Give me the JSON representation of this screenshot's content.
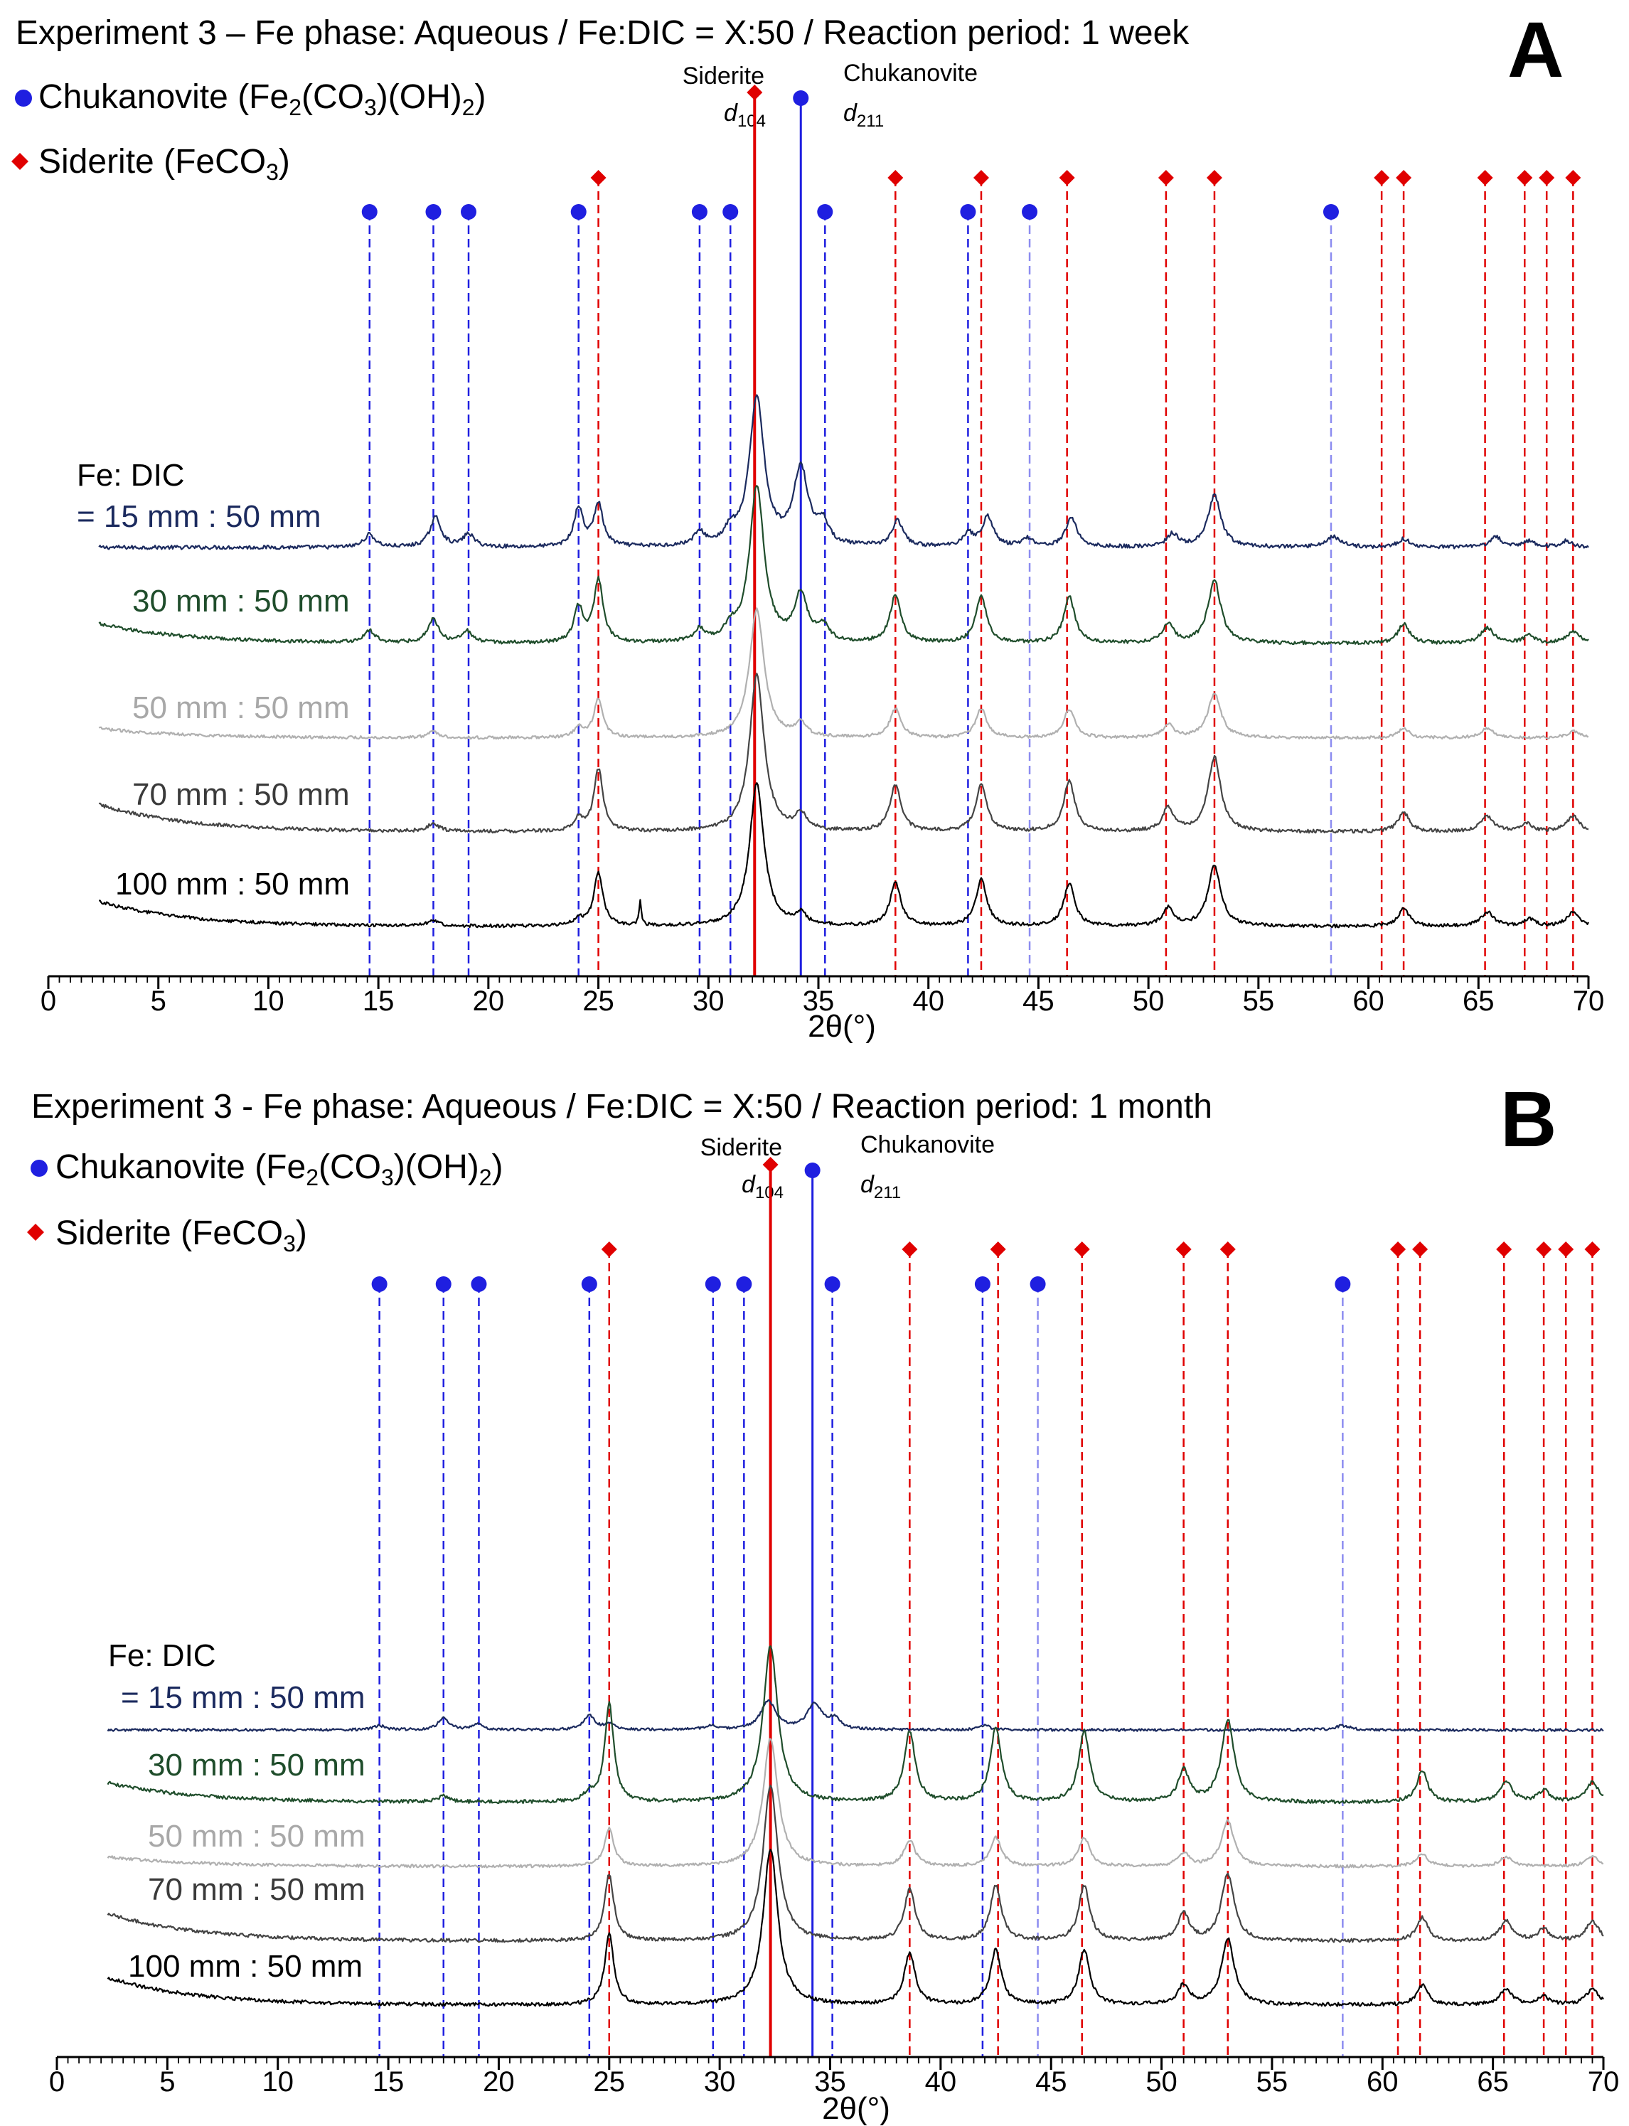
{
  "colors": {
    "chukanovite": "#1f1fe0",
    "siderite": "#e00000",
    "axis": "#000000",
    "series": [
      "#1b2a5e",
      "#1f4d2b",
      "#b0b0b0",
      "#444444",
      "#000000"
    ]
  },
  "chart_data": [
    {
      "panel": "A",
      "type": "line",
      "title": "Experiment 3 – Fe phase: Aqueous / Fe:DIC = X:50 / Reaction period: 1 week",
      "xlabel": "2θ(°)",
      "ylabel": "",
      "xlim": [
        0,
        70
      ],
      "xticks": [
        "0",
        "5",
        "10",
        "15",
        "20",
        "25",
        "30",
        "35",
        "40",
        "45",
        "50",
        "55",
        "60",
        "65",
        "70"
      ],
      "legend": {
        "chukanovite": {
          "name": "Chukanovite",
          "formula": [
            "(Fe",
            "2",
            "(CO",
            "3",
            ")(OH)",
            "2",
            ")"
          ]
        },
        "siderite": {
          "name": "Siderite",
          "formula": [
            "(FeCO",
            "3",
            ")"
          ]
        }
      },
      "annotations": {
        "siderite": {
          "name": "Siderite",
          "d": "d",
          "hkl": "104",
          "x": 32.1
        },
        "chukanovite": {
          "name": "Chukanovite",
          "d": "d",
          "hkl": "211",
          "x": 34.2
        }
      },
      "series_header": "Fe: DIC",
      "series": [
        {
          "name": "= 15 mm : 50 mm",
          "peaks": [
            [
              14.6,
              0.3,
              0.3
            ],
            [
              17.6,
              0.7,
              0.3
            ],
            [
              19.1,
              0.3,
              0.3
            ],
            [
              24.1,
              0.9,
              0.25
            ],
            [
              25.0,
              1.0,
              0.25
            ],
            [
              29.6,
              0.3,
              0.3
            ],
            [
              31.0,
              0.3,
              0.3
            ],
            [
              32.2,
              3.5,
              0.4
            ],
            [
              34.2,
              1.8,
              0.4
            ],
            [
              35.2,
              0.5,
              0.3
            ],
            [
              38.6,
              0.6,
              0.3
            ],
            [
              41.8,
              0.3,
              0.3
            ],
            [
              42.7,
              0.7,
              0.3
            ],
            [
              44.5,
              0.2,
              0.3
            ],
            [
              46.5,
              0.7,
              0.3
            ],
            [
              51.1,
              0.3,
              0.3
            ],
            [
              53.0,
              1.2,
              0.35
            ],
            [
              58.4,
              0.25,
              0.4
            ],
            [
              61.6,
              0.2,
              0.3
            ],
            [
              65.8,
              0.25,
              0.3
            ],
            [
              67.3,
              0.15,
              0.3
            ],
            [
              69.0,
              0.15,
              0.3
            ]
          ]
        },
        {
          "name": "30 mm : 50 mm",
          "peaks": [
            [
              14.6,
              0.3,
              0.3
            ],
            [
              17.5,
              0.6,
              0.3
            ],
            [
              19.0,
              0.3,
              0.3
            ],
            [
              24.1,
              0.9,
              0.25
            ],
            [
              25.0,
              1.6,
              0.25
            ],
            [
              29.6,
              0.3,
              0.3
            ],
            [
              31.0,
              0.3,
              0.3
            ],
            [
              32.2,
              4.0,
              0.4
            ],
            [
              34.2,
              1.2,
              0.35
            ],
            [
              35.2,
              0.4,
              0.3
            ],
            [
              38.5,
              1.2,
              0.3
            ],
            [
              42.4,
              1.2,
              0.3
            ],
            [
              46.4,
              1.2,
              0.3
            ],
            [
              50.9,
              0.5,
              0.3
            ],
            [
              53.0,
              1.6,
              0.35
            ],
            [
              61.6,
              0.5,
              0.3
            ],
            [
              65.4,
              0.4,
              0.35
            ],
            [
              67.3,
              0.2,
              0.3
            ],
            [
              69.3,
              0.3,
              0.35
            ]
          ]
        },
        {
          "name": "50 mm : 50 mm",
          "peaks": [
            [
              17.5,
              0.2,
              0.3
            ],
            [
              24.1,
              0.3,
              0.25
            ],
            [
              25.0,
              1.2,
              0.25
            ],
            [
              32.2,
              4.0,
              0.4
            ],
            [
              34.2,
              0.4,
              0.3
            ],
            [
              38.5,
              0.9,
              0.3
            ],
            [
              42.4,
              0.9,
              0.3
            ],
            [
              46.4,
              0.9,
              0.3
            ],
            [
              50.9,
              0.4,
              0.3
            ],
            [
              53.0,
              1.4,
              0.35
            ],
            [
              61.6,
              0.3,
              0.3
            ],
            [
              65.4,
              0.3,
              0.35
            ],
            [
              69.3,
              0.2,
              0.35
            ]
          ]
        },
        {
          "name": "70 mm : 50 mm",
          "peaks": [
            [
              17.5,
              0.2,
              0.3
            ],
            [
              24.1,
              0.3,
              0.25
            ],
            [
              25.0,
              1.6,
              0.25
            ],
            [
              32.2,
              4.0,
              0.4
            ],
            [
              34.2,
              0.4,
              0.3
            ],
            [
              38.5,
              1.2,
              0.3
            ],
            [
              42.4,
              1.2,
              0.3
            ],
            [
              46.4,
              1.3,
              0.3
            ],
            [
              50.9,
              0.6,
              0.3
            ],
            [
              53.0,
              1.9,
              0.35
            ],
            [
              61.6,
              0.5,
              0.3
            ],
            [
              65.4,
              0.4,
              0.35
            ],
            [
              67.2,
              0.2,
              0.3
            ],
            [
              69.3,
              0.4,
              0.35
            ]
          ]
        },
        {
          "name": "100 mm : 50 mm",
          "peaks": [
            [
              17.5,
              0.15,
              0.3
            ],
            [
              24.1,
              0.2,
              0.25
            ],
            [
              25.0,
              1.5,
              0.25
            ],
            [
              26.9,
              0.7,
              0.06
            ],
            [
              32.2,
              4.0,
              0.4
            ],
            [
              34.2,
              0.3,
              0.3
            ],
            [
              38.5,
              1.2,
              0.3
            ],
            [
              42.4,
              1.3,
              0.3
            ],
            [
              46.4,
              1.2,
              0.3
            ],
            [
              50.9,
              0.5,
              0.3
            ],
            [
              53.0,
              1.7,
              0.35
            ],
            [
              61.6,
              0.5,
              0.3
            ],
            [
              65.4,
              0.4,
              0.35
            ],
            [
              67.3,
              0.2,
              0.3
            ],
            [
              69.3,
              0.4,
              0.35
            ]
          ]
        }
      ],
      "chukanovite_lines": [
        14.6,
        17.5,
        19.1,
        24.1,
        29.6,
        31.0,
        35.3,
        41.8,
        44.6,
        58.3
      ],
      "siderite_lines": [
        25.0,
        38.5,
        42.4,
        46.3,
        50.8,
        53.0,
        60.6,
        61.6,
        65.3,
        67.1,
        68.1,
        69.3
      ]
    },
    {
      "panel": "B",
      "type": "line",
      "title": "Experiment 3 - Fe phase: Aqueous / Fe:DIC = X:50 / Reaction period: 1 month",
      "xlabel": "2θ(°)",
      "ylabel": "",
      "xlim": [
        0,
        70
      ],
      "xticks": [
        "0",
        "5",
        "10",
        "15",
        "20",
        "25",
        "30",
        "35",
        "40",
        "45",
        "50",
        "55",
        "60",
        "65",
        "70"
      ],
      "legend": {
        "chukanovite": {
          "name": "Chukanovite",
          "formula": [
            "(Fe",
            "2",
            "(CO",
            "3",
            ")(OH)",
            "2",
            ")"
          ]
        },
        "siderite": {
          "name": "Siderite",
          "formula": [
            "(FeCO",
            "3",
            ")"
          ]
        }
      },
      "annotations": {
        "siderite": {
          "name": "Siderite",
          "d": "d",
          "hkl": "104",
          "x": 32.3
        },
        "chukanovite": {
          "name": "Chukanovite",
          "d": "d",
          "hkl": "211",
          "x": 34.2
        }
      },
      "series_header": "Fe: DIC",
      "series": [
        {
          "name": "= 15 mm : 50 mm",
          "peaks": [
            [
              14.6,
              0.15,
              0.3
            ],
            [
              17.5,
              0.4,
              0.3
            ],
            [
              19.0,
              0.2,
              0.3
            ],
            [
              24.1,
              0.5,
              0.3
            ],
            [
              25.0,
              0.2,
              0.25
            ],
            [
              29.6,
              0.15,
              0.3
            ],
            [
              32.2,
              1.0,
              0.4
            ],
            [
              34.3,
              0.9,
              0.4
            ],
            [
              35.2,
              0.35,
              0.3
            ],
            [
              42.0,
              0.15,
              0.3
            ],
            [
              58.2,
              0.15,
              0.4
            ]
          ]
        },
        {
          "name": "30 mm : 50 mm",
          "peaks": [
            [
              17.5,
              0.15,
              0.3
            ],
            [
              24.1,
              0.2,
              0.25
            ],
            [
              25.0,
              2.5,
              0.25
            ],
            [
              32.3,
              4.0,
              0.4
            ],
            [
              38.6,
              1.8,
              0.3
            ],
            [
              42.5,
              1.9,
              0.3
            ],
            [
              46.5,
              1.8,
              0.3
            ],
            [
              51.0,
              0.8,
              0.3
            ],
            [
              53.0,
              2.1,
              0.35
            ],
            [
              61.8,
              0.8,
              0.3
            ],
            [
              65.6,
              0.5,
              0.35
            ],
            [
              67.3,
              0.3,
              0.3
            ],
            [
              69.5,
              0.5,
              0.35
            ]
          ]
        },
        {
          "name": "50 mm : 50 mm",
          "peaks": [
            [
              25.0,
              1.2,
              0.25
            ],
            [
              32.3,
              4.0,
              0.4
            ],
            [
              38.6,
              0.8,
              0.3
            ],
            [
              42.5,
              0.9,
              0.3
            ],
            [
              46.5,
              0.9,
              0.3
            ],
            [
              51.0,
              0.4,
              0.3
            ],
            [
              53.0,
              1.4,
              0.35
            ],
            [
              61.8,
              0.4,
              0.3
            ],
            [
              65.6,
              0.3,
              0.35
            ],
            [
              69.5,
              0.3,
              0.35
            ]
          ]
        },
        {
          "name": "70 mm : 50 mm",
          "peaks": [
            [
              25.0,
              1.7,
              0.25
            ],
            [
              32.3,
              4.0,
              0.4
            ],
            [
              38.6,
              1.3,
              0.3
            ],
            [
              42.5,
              1.4,
              0.3
            ],
            [
              46.5,
              1.4,
              0.3
            ],
            [
              51.0,
              0.7,
              0.3
            ],
            [
              53.0,
              1.7,
              0.35
            ],
            [
              61.8,
              0.6,
              0.3
            ],
            [
              65.6,
              0.5,
              0.35
            ],
            [
              67.3,
              0.3,
              0.3
            ],
            [
              69.5,
              0.5,
              0.35
            ]
          ]
        },
        {
          "name": "100 mm : 50 mm",
          "peaks": [
            [
              25.0,
              1.8,
              0.25
            ],
            [
              32.3,
              4.0,
              0.4
            ],
            [
              38.6,
              1.3,
              0.3
            ],
            [
              42.5,
              1.4,
              0.3
            ],
            [
              46.5,
              1.4,
              0.3
            ],
            [
              51.0,
              0.5,
              0.3
            ],
            [
              53.0,
              1.7,
              0.35
            ],
            [
              61.8,
              0.5,
              0.3
            ],
            [
              65.6,
              0.4,
              0.35
            ],
            [
              67.3,
              0.2,
              0.3
            ],
            [
              69.5,
              0.4,
              0.35
            ]
          ]
        }
      ],
      "chukanovite_lines": [
        14.6,
        17.5,
        19.1,
        24.1,
        29.7,
        31.1,
        35.1,
        41.9,
        44.4,
        58.2
      ],
      "siderite_lines": [
        25.0,
        38.6,
        42.6,
        46.4,
        51.0,
        53.0,
        60.7,
        61.7,
        65.5,
        67.3,
        68.3,
        69.5
      ]
    }
  ]
}
